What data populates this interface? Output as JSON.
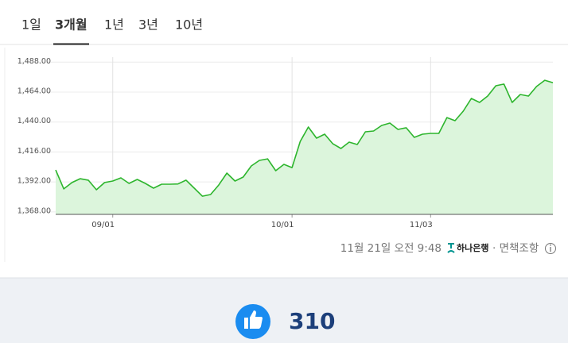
{
  "tabs": [
    "1일",
    "3개월",
    "1년",
    "3년",
    "10년"
  ],
  "chart_data": {
    "type": "area",
    "categories": [
      null,
      null,
      null,
      null,
      null,
      null,
      null,
      "09/01",
      null,
      null,
      null,
      null,
      null,
      null,
      null,
      null,
      null,
      null,
      null,
      null,
      null,
      null,
      null,
      null,
      null,
      null,
      null,
      null,
      null,
      "10/01",
      null,
      null,
      null,
      null,
      null,
      null,
      null,
      null,
      null,
      null,
      null,
      null,
      null,
      null,
      null,
      null,
      "11/03",
      null,
      null,
      null,
      null,
      null,
      null,
      null,
      null,
      null,
      null,
      null,
      null,
      null,
      null,
      null
    ],
    "values": [
      1401.6,
      1386.4,
      1391.5,
      1394.6,
      1393.4,
      1385.7,
      1391.5,
      1392.7,
      1395.3,
      1390.8,
      1394.0,
      1390.8,
      1387.0,
      1390.2,
      1390.2,
      1390.4,
      1393.4,
      1387.0,
      1380.6,
      1381.9,
      1389.5,
      1399.1,
      1392.7,
      1395.9,
      1404.8,
      1409.3,
      1410.5,
      1401.0,
      1406.1,
      1403.5,
      1424.5,
      1436.0,
      1427.1,
      1430.3,
      1422.6,
      1418.8,
      1423.9,
      1422.0,
      1432.2,
      1432.8,
      1437.3,
      1439.2,
      1434.1,
      1435.4,
      1427.7,
      1430.3,
      1430.9,
      1430.9,
      1443.6,
      1441.1,
      1448.7,
      1458.9,
      1455.7,
      1460.8,
      1469.1,
      1470.4,
      1455.7,
      1462.1,
      1460.8,
      1468.5,
      1473.5,
      1471.6
    ],
    "color": "#2db52d",
    "fill_color": "#dcf5dc",
    "ylim": [
      1366,
      1492
    ],
    "yticks": [
      {
        "value": 1368,
        "label": "1,368.00"
      },
      {
        "value": 1392,
        "label": "1,392.00"
      },
      {
        "value": 1416,
        "label": "1,416.00"
      },
      {
        "value": 1440,
        "label": "1,440.00"
      },
      {
        "value": 1464,
        "label": "1,464.00"
      },
      {
        "value": 1488,
        "label": "1,488.00"
      }
    ],
    "grid": true
  },
  "source": {
    "timestamp": "11월 21일 오전 9:48",
    "provider": "하나은행",
    "disclaimer": "· 면책조항"
  },
  "like_count": 310
}
